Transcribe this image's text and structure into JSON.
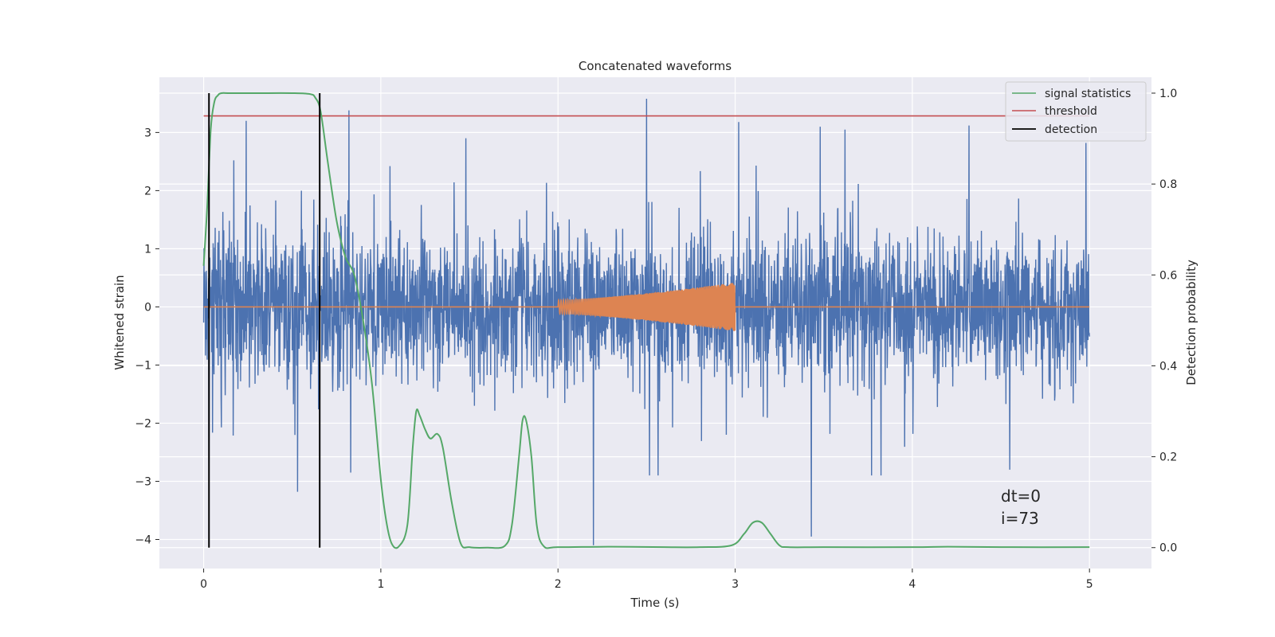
{
  "chart_data": {
    "type": "line",
    "title": "Concatenated waveforms",
    "xlabel": "Time (s)",
    "ylabel": "Whitened strain",
    "y2label": "Detection probability",
    "xlim": [
      -0.25,
      5.35
    ],
    "ylim": [
      -4.5,
      3.95
    ],
    "y2lim": [
      -0.046,
      1.035
    ],
    "xticks": [
      0,
      1,
      2,
      3,
      4,
      5
    ],
    "yticks": [
      -4,
      -3,
      -2,
      -1,
      0,
      1,
      2,
      3
    ],
    "y2ticks": [
      0.0,
      0.2,
      0.4,
      0.6,
      0.8,
      1.0
    ],
    "xtick_labels": [
      "0",
      "1",
      "2",
      "3",
      "4",
      "5"
    ],
    "ytick_labels": [
      "−4",
      "−3",
      "−2",
      "−1",
      "0",
      "1",
      "2",
      "3"
    ],
    "y2tick_labels": [
      "0.0",
      "0.2",
      "0.4",
      "0.6",
      "0.8",
      "1.0"
    ],
    "grid": true,
    "legend_position": "top-right",
    "colors": {
      "strain": "#4c72b0",
      "injection": "#dd8452",
      "signal": "#55a868",
      "threshold": "#c44e52",
      "detection": "#000000",
      "background": "#eaeaf2"
    },
    "series": [
      {
        "name": "",
        "axis": "left",
        "kind": "noise",
        "x_range": [
          0,
          5
        ],
        "typical_amplitude": 2.2,
        "extremes": [
          [
            0.03,
            -3.35
          ],
          [
            0.17,
            2.52
          ],
          [
            0.24,
            3.2
          ],
          [
            0.53,
            -3.18
          ],
          [
            0.82,
            3.38
          ],
          [
            0.83,
            -2.85
          ],
          [
            1.48,
            2.9
          ],
          [
            2.2,
            -4.1
          ],
          [
            2.5,
            3.58
          ],
          [
            2.95,
            -2.2
          ],
          [
            3.02,
            3.18
          ],
          [
            3.43,
            -3.95
          ],
          [
            3.48,
            3.1
          ],
          [
            3.77,
            -2.9
          ],
          [
            3.62,
            3.05
          ],
          [
            4.32,
            3.12
          ],
          [
            4.55,
            -2.8
          ],
          [
            4.98,
            2.82
          ]
        ]
      },
      {
        "name": "",
        "axis": "left",
        "kind": "chirp",
        "x_range": [
          2.0,
          3.0
        ],
        "amplitude_start": 0.12,
        "amplitude_end": 0.42,
        "baseline": 0
      },
      {
        "name": "signal statistics",
        "axis": "right",
        "x": [
          0.0,
          0.02,
          0.04,
          0.06,
          0.08,
          0.1,
          0.15,
          0.3,
          0.5,
          0.6,
          0.63,
          0.66,
          0.7,
          0.75,
          0.8,
          0.85,
          0.9,
          0.95,
          1.0,
          1.03,
          1.06,
          1.1,
          1.15,
          1.18,
          1.2,
          1.22,
          1.25,
          1.28,
          1.32,
          1.35,
          1.4,
          1.45,
          1.5,
          1.6,
          1.7,
          1.74,
          1.78,
          1.8,
          1.82,
          1.85,
          1.88,
          1.92,
          2.0,
          2.3,
          2.6,
          2.8,
          2.98,
          3.05,
          3.1,
          3.15,
          3.2,
          3.25,
          3.3,
          3.5,
          4.0,
          4.2,
          4.5,
          5.0
        ],
        "y": [
          0.62,
          0.75,
          0.92,
          0.98,
          0.995,
          1.0,
          1.0,
          1.0,
          1.0,
          0.998,
          0.99,
          0.96,
          0.85,
          0.72,
          0.64,
          0.6,
          0.5,
          0.36,
          0.15,
          0.06,
          0.01,
          0.002,
          0.05,
          0.22,
          0.3,
          0.29,
          0.26,
          0.24,
          0.25,
          0.22,
          0.1,
          0.01,
          0.001,
          0.0,
          0.004,
          0.05,
          0.2,
          0.28,
          0.28,
          0.2,
          0.05,
          0.003,
          0.001,
          0.002,
          0.001,
          0.001,
          0.005,
          0.03,
          0.055,
          0.055,
          0.03,
          0.005,
          0.001,
          0.001,
          0.001,
          0.002,
          0.001,
          0.001
        ]
      },
      {
        "name": "threshold",
        "axis": "right",
        "x": [
          0,
          5
        ],
        "y": [
          0.95,
          0.95
        ]
      },
      {
        "name": "detection",
        "axis": "right",
        "kind": "vlines",
        "x": [
          0.03,
          0.655
        ],
        "ymin": 0,
        "ymax": 1.0
      }
    ],
    "annotations": [
      {
        "text": "dt=0",
        "x": 4.5,
        "y": -3.35
      },
      {
        "text": "i=73",
        "x": 4.5,
        "y": -3.73
      }
    ]
  }
}
